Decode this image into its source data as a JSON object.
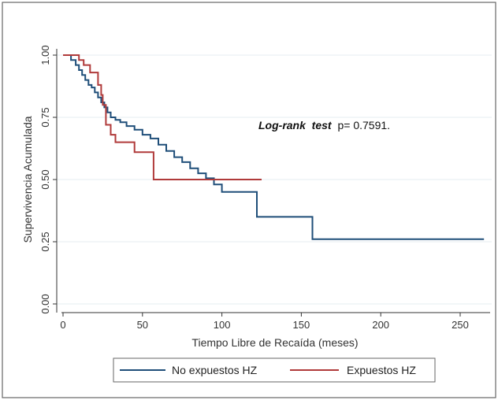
{
  "chart_data": {
    "type": "line",
    "xlabel": "Tiempo Libre de Recaída (meses)",
    "ylabel": "Supervivencia Acumulada",
    "xlim": [
      -2,
      265
    ],
    "ylim": [
      0,
      1
    ],
    "xticks": [
      0,
      50,
      100,
      150,
      200,
      250
    ],
    "yticks": [
      0.0,
      0.25,
      0.5,
      0.75,
      1.0
    ],
    "ytick_labels": [
      "0.00",
      "0.25",
      "0.50",
      "0.75",
      "1.00"
    ],
    "grid": true,
    "legend_position": "bottom",
    "annotation": {
      "italic_part": "Log-rank  test",
      "rest": "p= 0.7591."
    },
    "series": [
      {
        "name": "No expuestos HZ",
        "color": "#1f4e79",
        "step": true,
        "x": [
          0,
          5,
          8,
          10,
          12,
          14,
          16,
          18,
          20,
          22,
          24,
          26,
          28,
          30,
          33,
          36,
          40,
          45,
          50,
          55,
          60,
          65,
          70,
          75,
          80,
          85,
          90,
          95,
          100,
          110,
          120,
          122,
          157,
          265
        ],
        "y": [
          1.0,
          0.98,
          0.96,
          0.94,
          0.92,
          0.9,
          0.88,
          0.87,
          0.85,
          0.83,
          0.81,
          0.79,
          0.77,
          0.75,
          0.74,
          0.73,
          0.715,
          0.7,
          0.68,
          0.665,
          0.64,
          0.615,
          0.59,
          0.57,
          0.545,
          0.525,
          0.505,
          0.48,
          0.45,
          0.45,
          0.45,
          0.35,
          0.26,
          0.26
        ]
      },
      {
        "name": "Expuestos HZ",
        "color": "#b03a3a",
        "step": true,
        "x": [
          0,
          10,
          13,
          17,
          22,
          24,
          25,
          27,
          30,
          33,
          41,
          45,
          57,
          125
        ],
        "y": [
          1.0,
          0.98,
          0.96,
          0.93,
          0.88,
          0.84,
          0.8,
          0.72,
          0.68,
          0.65,
          0.65,
          0.61,
          0.5,
          0.5
        ]
      }
    ]
  }
}
